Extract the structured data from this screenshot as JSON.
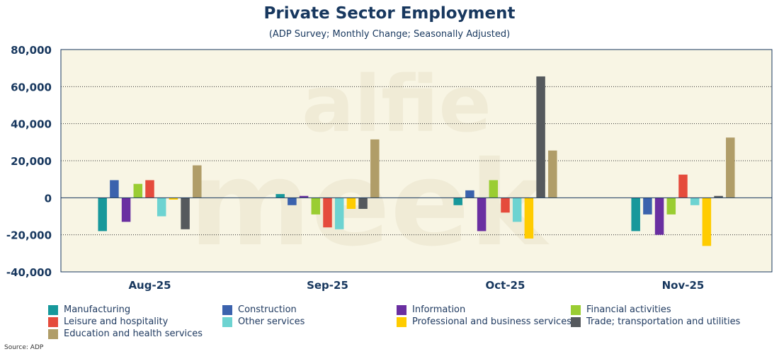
{
  "chart_data": {
    "type": "bar",
    "title": "Private Sector Employment",
    "subtitle": "(ADP Survey; Monthly Change; Seasonally Adjusted)",
    "xlabel": "",
    "ylabel": "",
    "ylim": [
      -40000,
      80000
    ],
    "yticks": [
      -40000,
      -20000,
      0,
      20000,
      40000,
      60000,
      80000
    ],
    "ytick_labels": [
      "-40,000",
      "-20,000",
      "0",
      "20,000",
      "40,000",
      "60,000",
      "80,000"
    ],
    "grid": true,
    "categories": [
      "Aug-25",
      "Sep-25",
      "Oct-25",
      "Nov-25"
    ],
    "series": [
      {
        "name": "Manufacturing",
        "color": "#17989b",
        "values": [
          -18000,
          2000,
          -4000,
          -18000
        ]
      },
      {
        "name": "Construction",
        "color": "#3b62ad",
        "values": [
          9500,
          -4000,
          4000,
          -9000
        ]
      },
      {
        "name": "Information",
        "color": "#6a2fa1",
        "values": [
          -13000,
          1000,
          -18000,
          -20000
        ]
      },
      {
        "name": "Financial activities",
        "color": "#9acd32",
        "values": [
          7500,
          -9000,
          9500,
          -9000
        ]
      },
      {
        "name": "Leisure and hospitality",
        "color": "#e54b3c",
        "values": [
          9500,
          -16000,
          -8000,
          12500
        ]
      },
      {
        "name": "Other services",
        "color": "#6dd3d1",
        "values": [
          -10000,
          -17000,
          -13000,
          -4000
        ]
      },
      {
        "name": "Professional and business services",
        "color": "#ffcc00",
        "values": [
          -1000,
          -6000,
          -22000,
          -26000
        ]
      },
      {
        "name": "Trade; transportation and utilities",
        "color": "#55595d",
        "values": [
          -17000,
          -6000,
          65500,
          1000
        ]
      },
      {
        "name": "Education and health services",
        "color": "#b09d68",
        "values": [
          17500,
          31500,
          25500,
          32500
        ]
      }
    ],
    "legend_position": "bottom"
  },
  "watermark": "alfie meek",
  "source": "Source: ADP",
  "colors": {
    "plot_background": "#f8f5e4",
    "axis_text": "#17375e"
  }
}
